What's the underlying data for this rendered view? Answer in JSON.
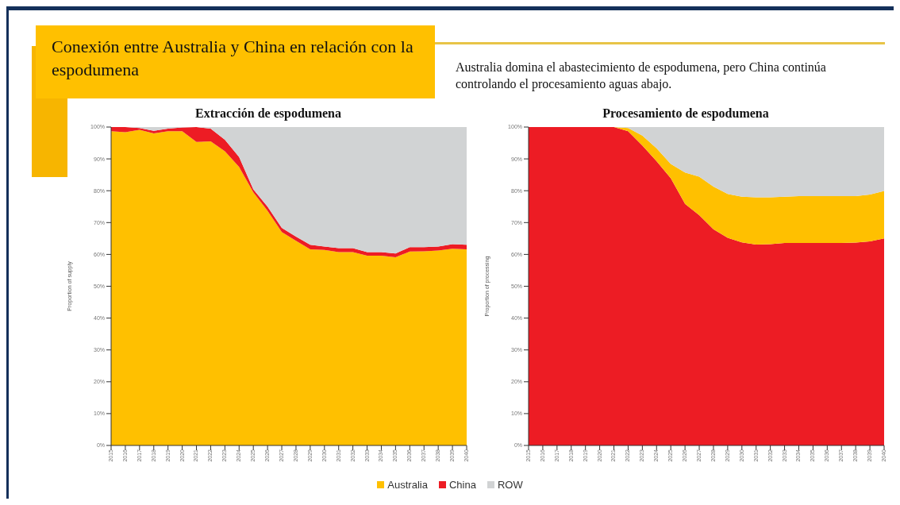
{
  "chart_data": [
    {
      "type": "area",
      "stacked": true,
      "title": "Extracción de espodumena",
      "ylabel": "Proportion of supply",
      "annotations": [
        "Conexión entre Australia y China en relación con la espodumena",
        "Australia domina el abastecimiento de espodumena, pero China continúa controlando el procesamiento aguas abajo."
      ],
      "legend": "bottom",
      "categories": [
        "2015",
        "2016",
        "2017",
        "2018",
        "2019",
        "2020",
        "2021",
        "2022",
        "2023",
        "2024",
        "2025",
        "2026",
        "2027",
        "2028",
        "2029",
        "2030",
        "2031",
        "2032",
        "2033",
        "2034",
        "2035",
        "2036",
        "2037",
        "2038",
        "2039",
        "2040"
      ],
      "ylim": [
        0,
        100
      ],
      "yticks": [
        {
          "value": 0,
          "label": "0%"
        },
        {
          "value": 10,
          "label": "10%"
        },
        {
          "value": 20,
          "label": "20%"
        },
        {
          "value": 30,
          "label": "30%"
        },
        {
          "value": 40,
          "label": "40%"
        },
        {
          "value": 50,
          "label": "50%"
        },
        {
          "value": 60,
          "label": "60%"
        },
        {
          "value": 70,
          "label": "70%"
        },
        {
          "value": 80,
          "label": "80%"
        },
        {
          "value": 90,
          "label": "90%"
        },
        {
          "value": 100,
          "label": "100%"
        }
      ],
      "series": [
        {
          "name": "Australia",
          "color": "#ffc000",
          "values": [
            98.7,
            98.4,
            99.1,
            98,
            98.7,
            98.7,
            95.3,
            95.5,
            92.4,
            87.5,
            79.5,
            73.7,
            67,
            64.3,
            61.6,
            61.4,
            60.7,
            60.7,
            59.6,
            59.6,
            59.1,
            60.9,
            61,
            61.2,
            61.8,
            61.6
          ]
        },
        {
          "name": "China",
          "color": "#ed1c24",
          "values": [
            1.3,
            1.6,
            0.6,
            0.8,
            0.8,
            1.2,
            4.7,
            4,
            3.6,
            3.1,
            0.9,
            1.3,
            1.3,
            1.3,
            1.4,
            1.1,
            1.3,
            1.3,
            1.1,
            1.1,
            1.2,
            1.4,
            1.3,
            1.3,
            1.4,
            1.4
          ]
        },
        {
          "name": "ROW",
          "color": "#d1d3d4",
          "values": [
            0,
            0,
            0.3,
            1.2,
            0.5,
            0.1,
            0,
            0.5,
            4,
            9.4,
            19.6,
            25,
            31.7,
            34.4,
            37,
            37.5,
            38,
            38,
            39.3,
            39.3,
            39.7,
            37.7,
            37.7,
            37.5,
            36.8,
            37
          ]
        }
      ]
    },
    {
      "type": "area",
      "stacked": true,
      "title": "Procesamiento de espodumena",
      "ylabel": "Proportion of processing",
      "categories": [
        "2015",
        "2016",
        "2017",
        "2018",
        "2019",
        "2020",
        "2021",
        "2022",
        "2023",
        "2024",
        "2025",
        "2026",
        "2027",
        "2028",
        "2029",
        "2030",
        "2031",
        "2032",
        "2033",
        "2034",
        "2035",
        "2036",
        "2037",
        "2038",
        "2039",
        "2040"
      ],
      "ylim": [
        0,
        100
      ],
      "yticks": [
        {
          "value": 0,
          "label": "0%"
        },
        {
          "value": 10,
          "label": "10%"
        },
        {
          "value": 20,
          "label": "20%"
        },
        {
          "value": 30,
          "label": "30%"
        },
        {
          "value": 40,
          "label": "40%"
        },
        {
          "value": 50,
          "label": "50%"
        },
        {
          "value": 60,
          "label": "60%"
        },
        {
          "value": 70,
          "label": "70%"
        },
        {
          "value": 80,
          "label": "80%"
        },
        {
          "value": 90,
          "label": "90%"
        },
        {
          "value": 100,
          "label": "100%"
        }
      ],
      "series": [
        {
          "color": "#ed1c24",
          "values": [
            100,
            100,
            100,
            100,
            100,
            100,
            100,
            98.7,
            94.2,
            89.3,
            83.9,
            75.9,
            72.3,
            67.9,
            65.2,
            63.8,
            63.1,
            63.2,
            63.6,
            63.6,
            63.6,
            63.6,
            63.6,
            63.7,
            64.1,
            65
          ]
        },
        {
          "color": "#ffc000",
          "values": [
            0,
            0,
            0,
            0,
            0,
            0,
            0,
            1,
            3.1,
            4,
            4.5,
            9.8,
            12.1,
            13.4,
            13.8,
            14.3,
            14.8,
            14.7,
            14.5,
            14.7,
            14.7,
            14.7,
            14.7,
            14.6,
            14.7,
            14.9
          ]
        },
        {
          "color": "#d1d3d4",
          "values": [
            0,
            0,
            0,
            0,
            0,
            0,
            0,
            0.3,
            2.7,
            6.7,
            11.6,
            14.3,
            15.6,
            18.7,
            21,
            21.9,
            22.1,
            22.1,
            21.9,
            21.7,
            21.7,
            21.7,
            21.7,
            21.7,
            21.2,
            20.1
          ]
        }
      ]
    }
  ]
}
